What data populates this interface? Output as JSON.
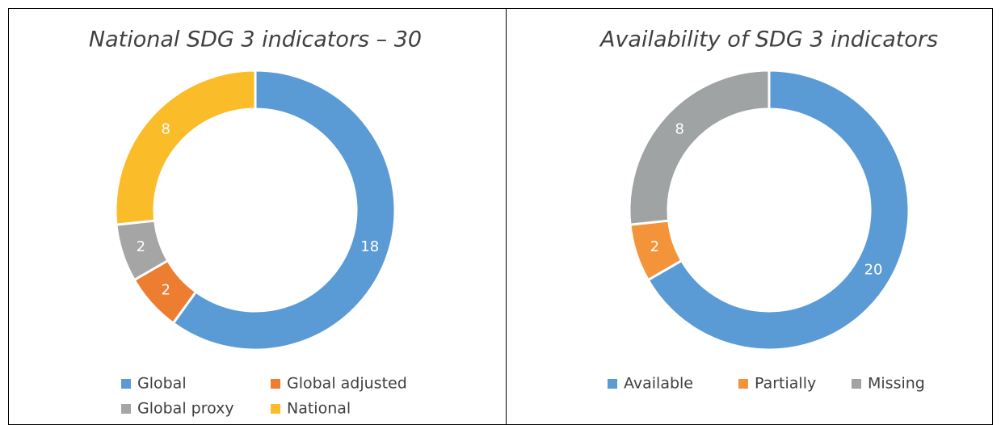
{
  "chart_data": [
    {
      "type": "donut",
      "title": "National SDG 3 indicators – 30",
      "categories": [
        "Global",
        "Global adjusted",
        "Global proxy",
        "National"
      ],
      "values": [
        18,
        2,
        2,
        8
      ],
      "colors": [
        "#5b9bd5",
        "#ed7d31",
        "#a5a5a5",
        "#fbbc2a"
      ]
    },
    {
      "type": "donut",
      "title": "Availability of SDG 3 indicators",
      "categories": [
        "Available",
        "Partially",
        "Missing"
      ],
      "values": [
        20,
        2,
        8
      ],
      "colors": [
        "#5b9bd5",
        "#f4943a",
        "#a0a3a3"
      ]
    }
  ]
}
